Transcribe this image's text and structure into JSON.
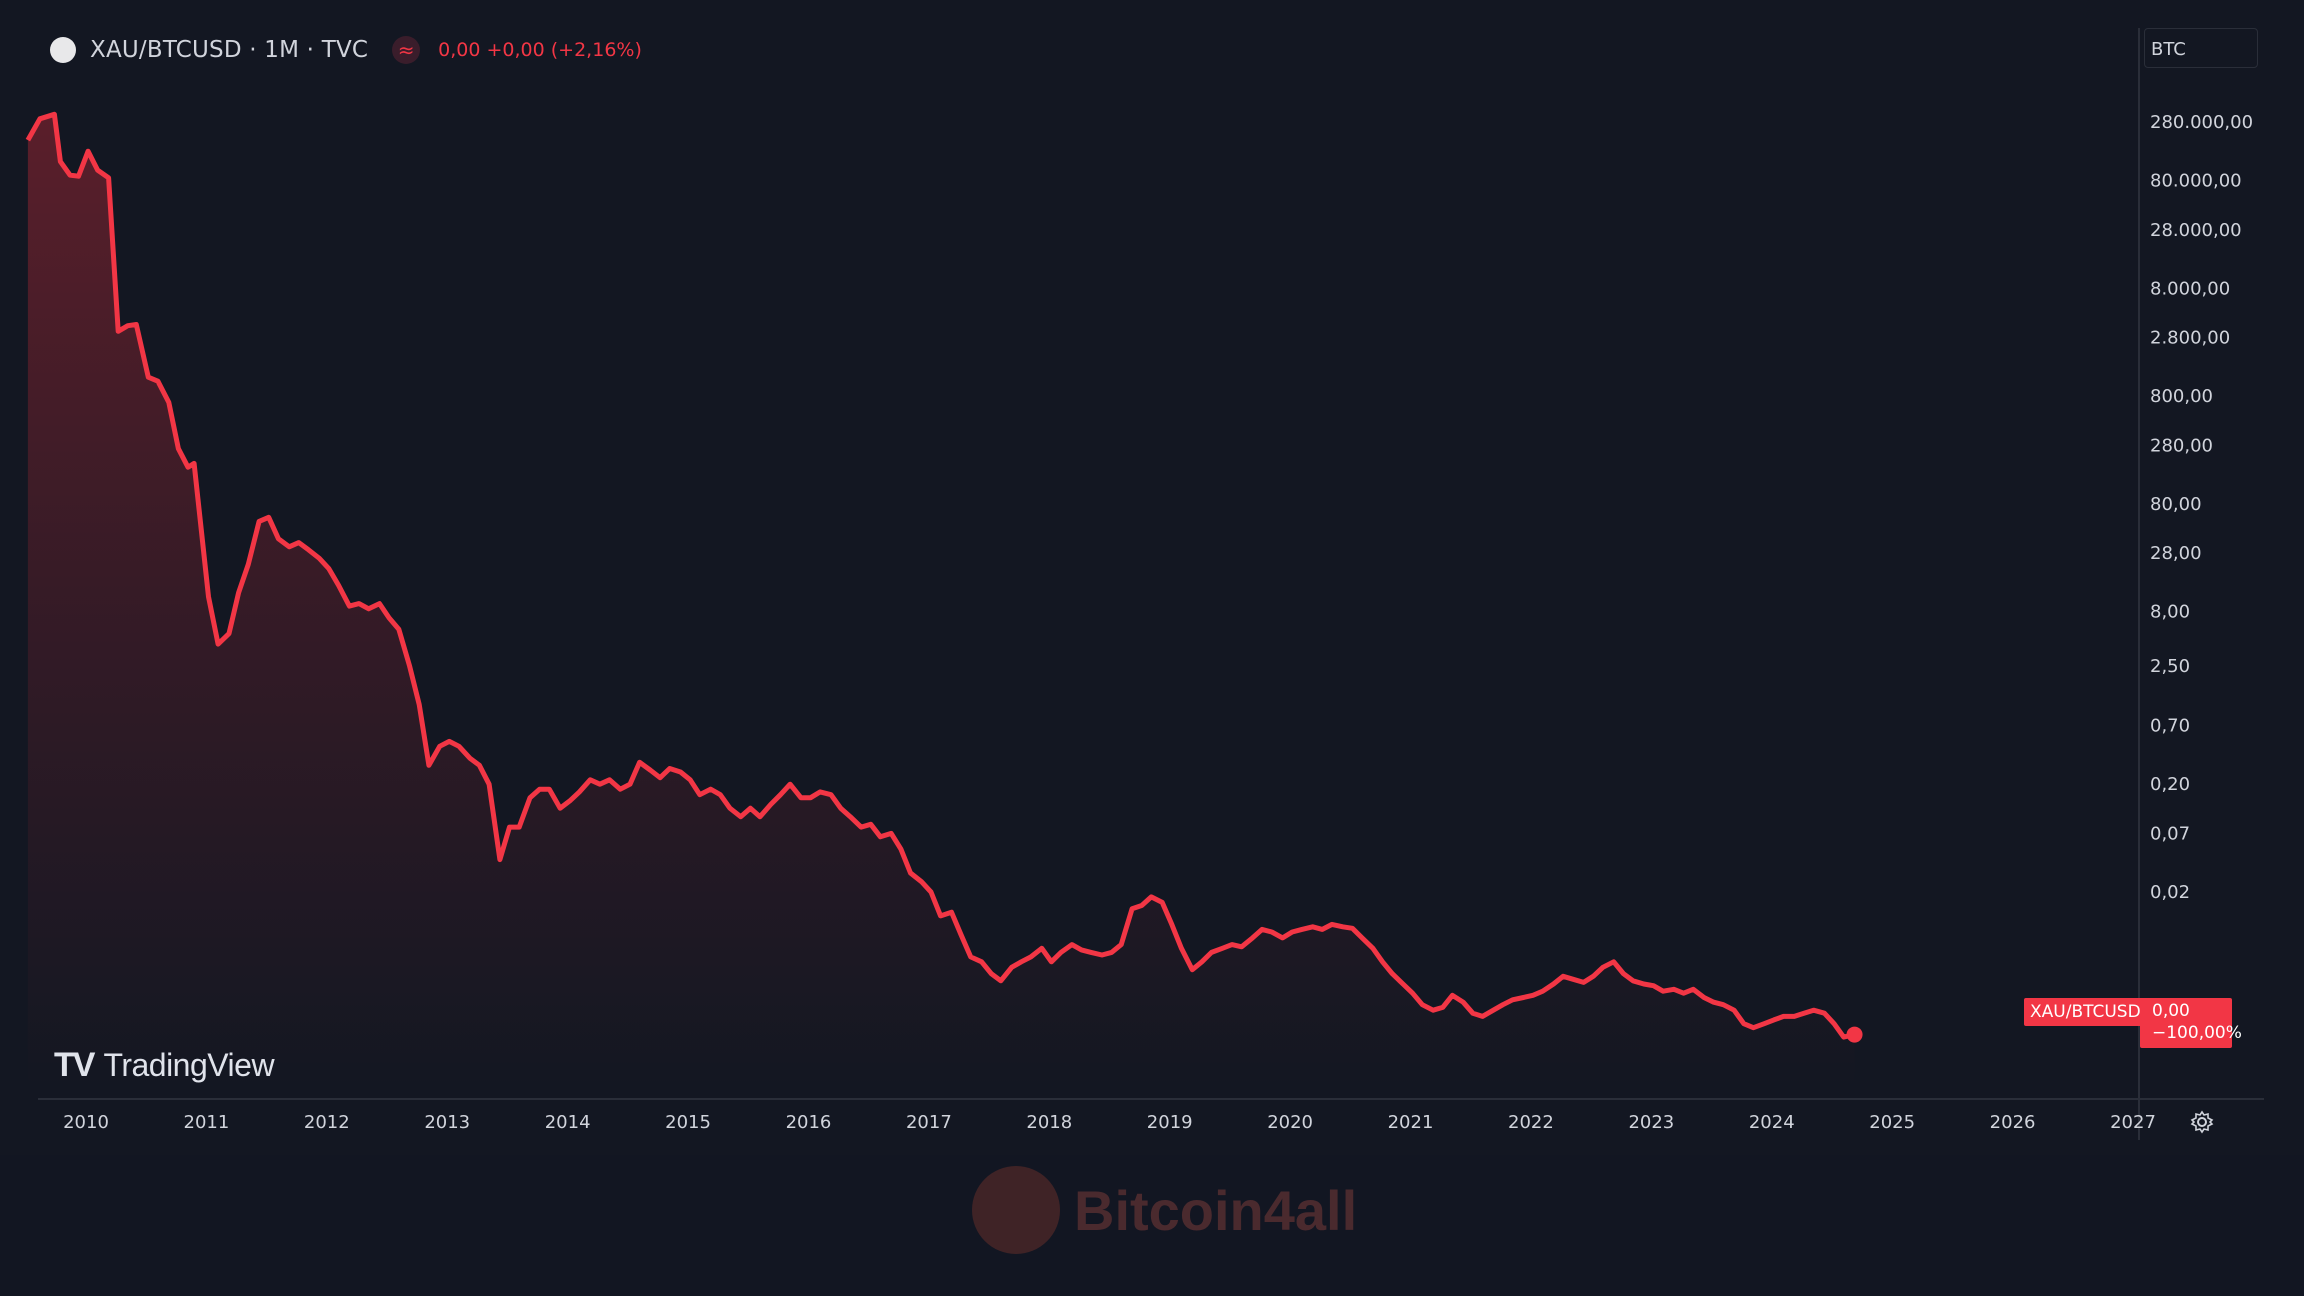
{
  "header": {
    "symbol": "XAU/BTCUSD · 1M · TVC",
    "ohlc_text": "0,00 +0,00 (+2,16%)",
    "approx_icon": "approx-icon"
  },
  "currency": "BTC",
  "watermark": {
    "logo": "TV",
    "text": "TradingView"
  },
  "brand": {
    "text": "Bitcoin4all",
    "icon": "bitcoin-logo-icon"
  },
  "last_label": "XAU/BTCUSD",
  "last_price": {
    "value": "0,00",
    "change": "−100,00%"
  },
  "settings_icon": "gear-icon",
  "colors": {
    "line": "#f23645",
    "background": "#131722",
    "fill_top": "#5e1f2b"
  },
  "chart_data": {
    "type": "area",
    "series_name": "XAU/BTCUSD",
    "y_scale": "log",
    "y_ticks": [
      {
        "value": 280000,
        "label": "280.000,00"
      },
      {
        "value": 80000,
        "label": "80.000,00"
      },
      {
        "value": 28000,
        "label": "28.000,00"
      },
      {
        "value": 8000,
        "label": "8.000,00"
      },
      {
        "value": 2800,
        "label": "2.800,00"
      },
      {
        "value": 800,
        "label": "800,00"
      },
      {
        "value": 280,
        "label": "280,00"
      },
      {
        "value": 80,
        "label": "80,00"
      },
      {
        "value": 28,
        "label": "28,00"
      },
      {
        "value": 8,
        "label": "8,00"
      },
      {
        "value": 2.5,
        "label": "2,50"
      },
      {
        "value": 0.7,
        "label": "0,70"
      },
      {
        "value": 0.2,
        "label": "0,20"
      },
      {
        "value": 0.07,
        "label": "0,07"
      },
      {
        "value": 0.02,
        "label": "0,02"
      }
    ],
    "x_ticks": [
      "2010",
      "2011",
      "2012",
      "2013",
      "2014",
      "2015",
      "2016",
      "2017",
      "2018",
      "2019",
      "2020",
      "2021",
      "2022",
      "2023",
      "2024",
      "2025",
      "2026",
      "2027"
    ],
    "x_range": [
      2009.75,
      2027.0
    ],
    "points": [
      [
        2009.75,
        190000
      ],
      [
        2009.85,
        300000
      ],
      [
        2009.97,
        330000
      ],
      [
        2010.02,
        120000
      ],
      [
        2010.1,
        90000
      ],
      [
        2010.17,
        88000
      ],
      [
        2010.25,
        150000
      ],
      [
        2010.33,
        100000
      ],
      [
        2010.42,
        85000
      ],
      [
        2010.5,
        3200
      ],
      [
        2010.58,
        3600
      ],
      [
        2010.65,
        3700
      ],
      [
        2010.75,
        1200
      ],
      [
        2010.83,
        1100
      ],
      [
        2010.92,
        700
      ],
      [
        2011.0,
        260
      ],
      [
        2011.08,
        175
      ],
      [
        2011.13,
        190
      ],
      [
        2011.25,
        11
      ],
      [
        2011.33,
        4
      ],
      [
        2011.42,
        5
      ],
      [
        2011.5,
        12
      ],
      [
        2011.58,
        22
      ],
      [
        2011.67,
        55
      ],
      [
        2011.75,
        60
      ],
      [
        2011.83,
        38
      ],
      [
        2011.92,
        32
      ],
      [
        2012.0,
        35
      ],
      [
        2012.08,
        30
      ],
      [
        2012.17,
        25
      ],
      [
        2012.25,
        20
      ],
      [
        2012.33,
        14
      ],
      [
        2012.42,
        9
      ],
      [
        2012.5,
        9.5
      ],
      [
        2012.58,
        8.5
      ],
      [
        2012.67,
        9.5
      ],
      [
        2012.75,
        7
      ],
      [
        2012.83,
        5.5
      ],
      [
        2012.92,
        2.5
      ],
      [
        2013.0,
        1.1
      ],
      [
        2013.08,
        0.3
      ],
      [
        2013.17,
        0.45
      ],
      [
        2013.25,
        0.5
      ],
      [
        2013.33,
        0.45
      ],
      [
        2013.42,
        0.35
      ],
      [
        2013.5,
        0.3
      ],
      [
        2013.58,
        0.2
      ],
      [
        2013.67,
        0.04
      ],
      [
        2013.75,
        0.08
      ],
      [
        2013.83,
        0.08
      ],
      [
        2013.92,
        0.15
      ],
      [
        2014.0,
        0.18
      ],
      [
        2014.08,
        0.18
      ],
      [
        2014.17,
        0.12
      ],
      [
        2014.25,
        0.14
      ],
      [
        2014.33,
        0.17
      ],
      [
        2014.42,
        0.22
      ],
      [
        2014.5,
        0.2
      ],
      [
        2014.58,
        0.22
      ],
      [
        2014.67,
        0.18
      ],
      [
        2014.75,
        0.2
      ],
      [
        2014.83,
        0.32
      ],
      [
        2014.92,
        0.27
      ],
      [
        2015.0,
        0.23
      ],
      [
        2015.08,
        0.28
      ],
      [
        2015.17,
        0.26
      ],
      [
        2015.25,
        0.22
      ],
      [
        2015.33,
        0.16
      ],
      [
        2015.42,
        0.18
      ],
      [
        2015.5,
        0.16
      ],
      [
        2015.58,
        0.12
      ],
      [
        2015.67,
        0.1
      ],
      [
        2015.75,
        0.12
      ],
      [
        2015.83,
        0.1
      ],
      [
        2015.92,
        0.13
      ],
      [
        2016.0,
        0.16
      ],
      [
        2016.08,
        0.2
      ],
      [
        2016.17,
        0.15
      ],
      [
        2016.25,
        0.15
      ],
      [
        2016.33,
        0.17
      ],
      [
        2016.42,
        0.16
      ],
      [
        2016.5,
        0.12
      ],
      [
        2016.58,
        0.1
      ],
      [
        2016.67,
        0.08
      ],
      [
        2016.75,
        0.085
      ],
      [
        2016.83,
        0.065
      ],
      [
        2016.92,
        0.07
      ],
      [
        2017.0,
        0.05
      ],
      [
        2017.08,
        0.03
      ],
      [
        2017.17,
        0.025
      ],
      [
        2017.25,
        0.02
      ],
      [
        2017.33,
        0.012
      ],
      [
        2017.42,
        0.013
      ],
      [
        2017.5,
        0.008
      ],
      [
        2017.58,
        0.005
      ],
      [
        2017.67,
        0.0045
      ],
      [
        2017.75,
        0.0035
      ],
      [
        2017.83,
        0.003
      ],
      [
        2017.92,
        0.004
      ],
      [
        2018.0,
        0.0045
      ],
      [
        2018.08,
        0.005
      ],
      [
        2018.17,
        0.006
      ],
      [
        2018.25,
        0.0045
      ],
      [
        2018.33,
        0.0055
      ],
      [
        2018.42,
        0.0065
      ],
      [
        2018.5,
        0.0058
      ],
      [
        2018.58,
        0.0055
      ],
      [
        2018.67,
        0.0052
      ],
      [
        2018.75,
        0.0055
      ],
      [
        2018.83,
        0.0065
      ],
      [
        2018.92,
        0.014
      ],
      [
        2019.0,
        0.015
      ],
      [
        2019.08,
        0.018
      ],
      [
        2019.17,
        0.016
      ],
      [
        2019.25,
        0.01
      ],
      [
        2019.33,
        0.006
      ],
      [
        2019.42,
        0.0038
      ],
      [
        2019.5,
        0.0045
      ],
      [
        2019.58,
        0.0055
      ],
      [
        2019.67,
        0.006
      ],
      [
        2019.75,
        0.0065
      ],
      [
        2019.83,
        0.0062
      ],
      [
        2019.92,
        0.0075
      ],
      [
        2020.0,
        0.009
      ],
      [
        2020.08,
        0.0085
      ],
      [
        2020.17,
        0.0075
      ],
      [
        2020.25,
        0.0085
      ],
      [
        2020.33,
        0.009
      ],
      [
        2020.42,
        0.0095
      ],
      [
        2020.5,
        0.009
      ],
      [
        2020.58,
        0.01
      ],
      [
        2020.67,
        0.0095
      ],
      [
        2020.75,
        0.0092
      ],
      [
        2020.83,
        0.0075
      ],
      [
        2020.92,
        0.006
      ],
      [
        2021.0,
        0.0045
      ],
      [
        2021.08,
        0.0035
      ],
      [
        2021.17,
        0.0028
      ],
      [
        2021.25,
        0.0023
      ],
      [
        2021.33,
        0.0018
      ],
      [
        2021.42,
        0.0016
      ],
      [
        2021.5,
        0.0017
      ],
      [
        2021.58,
        0.0022
      ],
      [
        2021.67,
        0.0019
      ],
      [
        2021.75,
        0.0015
      ],
      [
        2021.83,
        0.0014
      ],
      [
        2021.92,
        0.0016
      ],
      [
        2022.0,
        0.0018
      ],
      [
        2022.08,
        0.002
      ],
      [
        2022.17,
        0.0021
      ],
      [
        2022.25,
        0.0022
      ],
      [
        2022.33,
        0.0024
      ],
      [
        2022.42,
        0.0028
      ],
      [
        2022.5,
        0.0033
      ],
      [
        2022.58,
        0.0031
      ],
      [
        2022.67,
        0.0029
      ],
      [
        2022.75,
        0.0033
      ],
      [
        2022.83,
        0.004
      ],
      [
        2022.92,
        0.0045
      ],
      [
        2023.0,
        0.0035
      ],
      [
        2023.08,
        0.003
      ],
      [
        2023.17,
        0.0028
      ],
      [
        2023.25,
        0.0027
      ],
      [
        2023.33,
        0.0024
      ],
      [
        2023.42,
        0.0025
      ],
      [
        2023.5,
        0.0023
      ],
      [
        2023.58,
        0.0025
      ],
      [
        2023.67,
        0.0021
      ],
      [
        2023.75,
        0.0019
      ],
      [
        2023.83,
        0.0018
      ],
      [
        2023.92,
        0.0016
      ],
      [
        2024.0,
        0.0012
      ],
      [
        2024.08,
        0.0011
      ],
      [
        2024.17,
        0.0012
      ],
      [
        2024.25,
        0.0013
      ],
      [
        2024.33,
        0.0014
      ],
      [
        2024.42,
        0.0014
      ],
      [
        2024.5,
        0.0015
      ],
      [
        2024.58,
        0.0016
      ],
      [
        2024.67,
        0.0015
      ],
      [
        2024.75,
        0.0012
      ],
      [
        2024.83,
        0.0009
      ],
      [
        2024.92,
        0.00095
      ]
    ]
  }
}
